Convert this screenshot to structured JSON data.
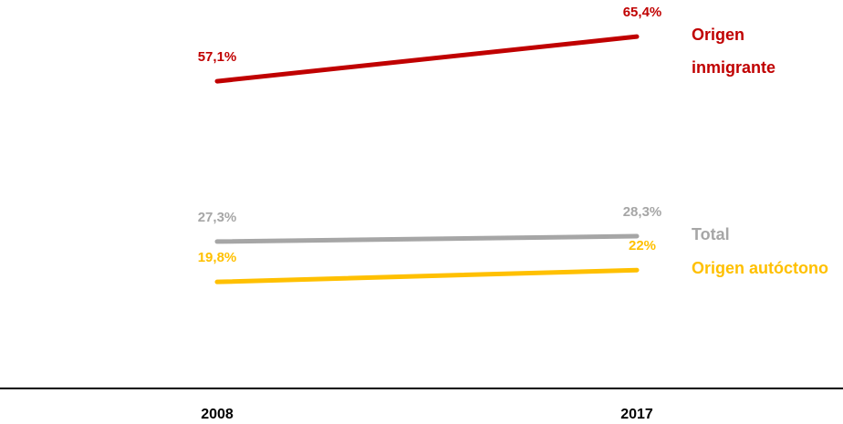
{
  "chart_data": {
    "type": "line",
    "categories": [
      "2008",
      "2017"
    ],
    "series": [
      {
        "name": "Origen inmigrante",
        "color": "#c00000",
        "values": [
          57.1,
          65.4
        ],
        "value_labels": [
          "57,1%",
          "65,4%"
        ]
      },
      {
        "name": "Total",
        "color": "#a6a6a6",
        "values": [
          27.3,
          28.3
        ],
        "value_labels": [
          "27,3%",
          "28,3%"
        ]
      },
      {
        "name": "Origen autóctono",
        "color": "#ffc000",
        "values": [
          19.8,
          22
        ],
        "value_labels": [
          "19,8%",
          "22%"
        ]
      }
    ],
    "ylim": [
      0,
      70
    ]
  }
}
